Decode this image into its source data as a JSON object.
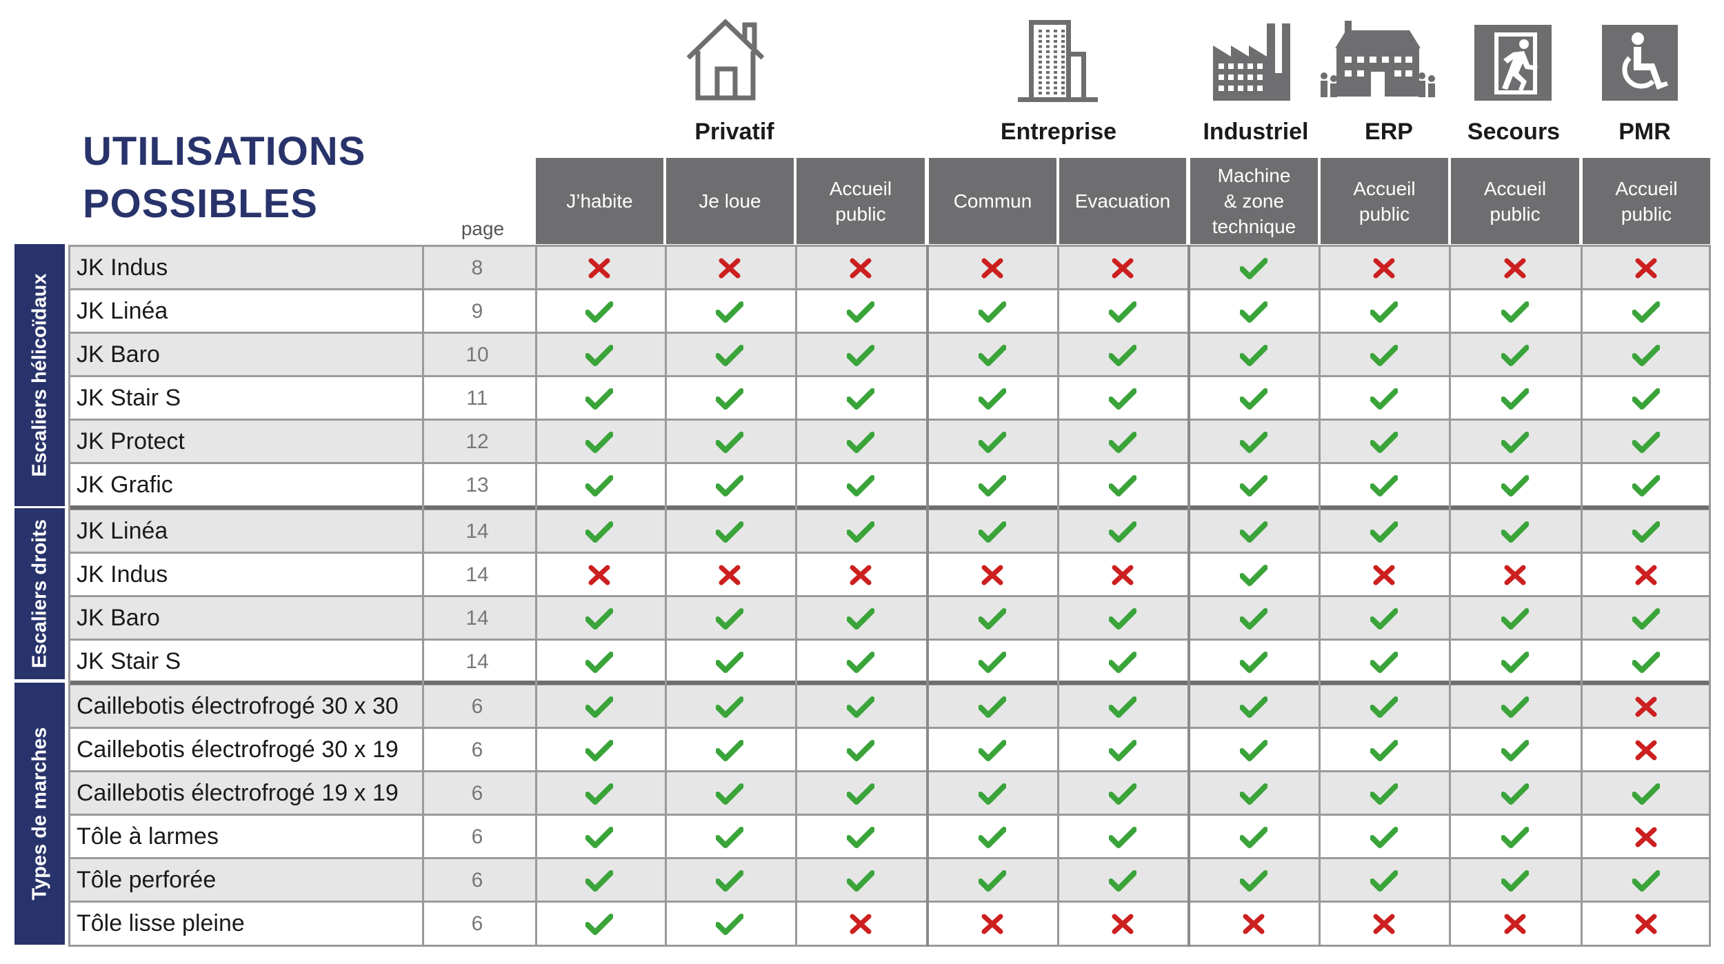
{
  "title": [
    "UTILISATIONS",
    "POSSIBLES"
  ],
  "page_label": "page",
  "groups": [
    {
      "label": "Privatif",
      "icon": "house-icon"
    },
    {
      "label": "Entreprise",
      "icon": "office-building-icon"
    },
    {
      "label": "Industriel",
      "icon": "factory-icon"
    },
    {
      "label": "ERP",
      "icon": "public-building-icon"
    },
    {
      "label": "Secours",
      "icon": "emergency-exit-icon"
    },
    {
      "label": "PMR",
      "icon": "wheelchair-icon"
    }
  ],
  "columns": [
    "J’habite",
    "Je loue",
    "Accueil\npublic",
    "Commun",
    "Evacuation",
    "Machine\n& zone\ntechnique",
    "Accueil\npublic",
    "Accueil\npublic",
    "Accueil\npublic"
  ],
  "sections": [
    {
      "label": "Escaliers hélicoïdaux",
      "rows": [
        {
          "name": "JK Indus",
          "page": "8",
          "marks": [
            0,
            0,
            0,
            0,
            0,
            1,
            0,
            0,
            0
          ]
        },
        {
          "name": "JK Linéa",
          "page": "9",
          "marks": [
            1,
            1,
            1,
            1,
            1,
            1,
            1,
            1,
            1
          ]
        },
        {
          "name": "JK Baro",
          "page": "10",
          "marks": [
            1,
            1,
            1,
            1,
            1,
            1,
            1,
            1,
            1
          ]
        },
        {
          "name": "JK Stair S",
          "page": "11",
          "marks": [
            1,
            1,
            1,
            1,
            1,
            1,
            1,
            1,
            1
          ]
        },
        {
          "name": "JK Protect",
          "page": "12",
          "marks": [
            1,
            1,
            1,
            1,
            1,
            1,
            1,
            1,
            1
          ]
        },
        {
          "name": "JK Grafic",
          "page": "13",
          "marks": [
            1,
            1,
            1,
            1,
            1,
            1,
            1,
            1,
            1
          ]
        }
      ]
    },
    {
      "label": "Escaliers droits",
      "rows": [
        {
          "name": "JK Linéa",
          "page": "14",
          "marks": [
            1,
            1,
            1,
            1,
            1,
            1,
            1,
            1,
            1
          ]
        },
        {
          "name": "JK Indus",
          "page": "14",
          "marks": [
            0,
            0,
            0,
            0,
            0,
            1,
            0,
            0,
            0
          ]
        },
        {
          "name": "JK Baro",
          "page": "14",
          "marks": [
            1,
            1,
            1,
            1,
            1,
            1,
            1,
            1,
            1
          ]
        },
        {
          "name": "JK Stair S",
          "page": "14",
          "marks": [
            1,
            1,
            1,
            1,
            1,
            1,
            1,
            1,
            1
          ]
        }
      ]
    },
    {
      "label": "Types de marches",
      "rows": [
        {
          "name": "Caillebotis électrofrogé 30 x 30",
          "page": "6",
          "marks": [
            1,
            1,
            1,
            1,
            1,
            1,
            1,
            1,
            0
          ]
        },
        {
          "name": "Caillebotis électrofrogé 30 x 19",
          "page": "6",
          "marks": [
            1,
            1,
            1,
            1,
            1,
            1,
            1,
            1,
            0
          ]
        },
        {
          "name": "Caillebotis électrofrogé 19 x 19",
          "page": "6",
          "marks": [
            1,
            1,
            1,
            1,
            1,
            1,
            1,
            1,
            1
          ]
        },
        {
          "name": "Tôle à larmes",
          "page": "6",
          "marks": [
            1,
            1,
            1,
            1,
            1,
            1,
            1,
            1,
            0
          ]
        },
        {
          "name": "Tôle perforée",
          "page": "6",
          "marks": [
            1,
            1,
            1,
            1,
            1,
            1,
            1,
            1,
            1
          ]
        },
        {
          "name": "Tôle lisse pleine",
          "page": "6",
          "marks": [
            1,
            1,
            0,
            0,
            0,
            0,
            0,
            0,
            0
          ]
        }
      ]
    }
  ],
  "colors": {
    "navy": "#29336b",
    "header_gray": "#6e6e70",
    "check_green": "#3aa43a",
    "cross_red": "#cc1f1f",
    "row_alt": "#e6e6e6"
  }
}
